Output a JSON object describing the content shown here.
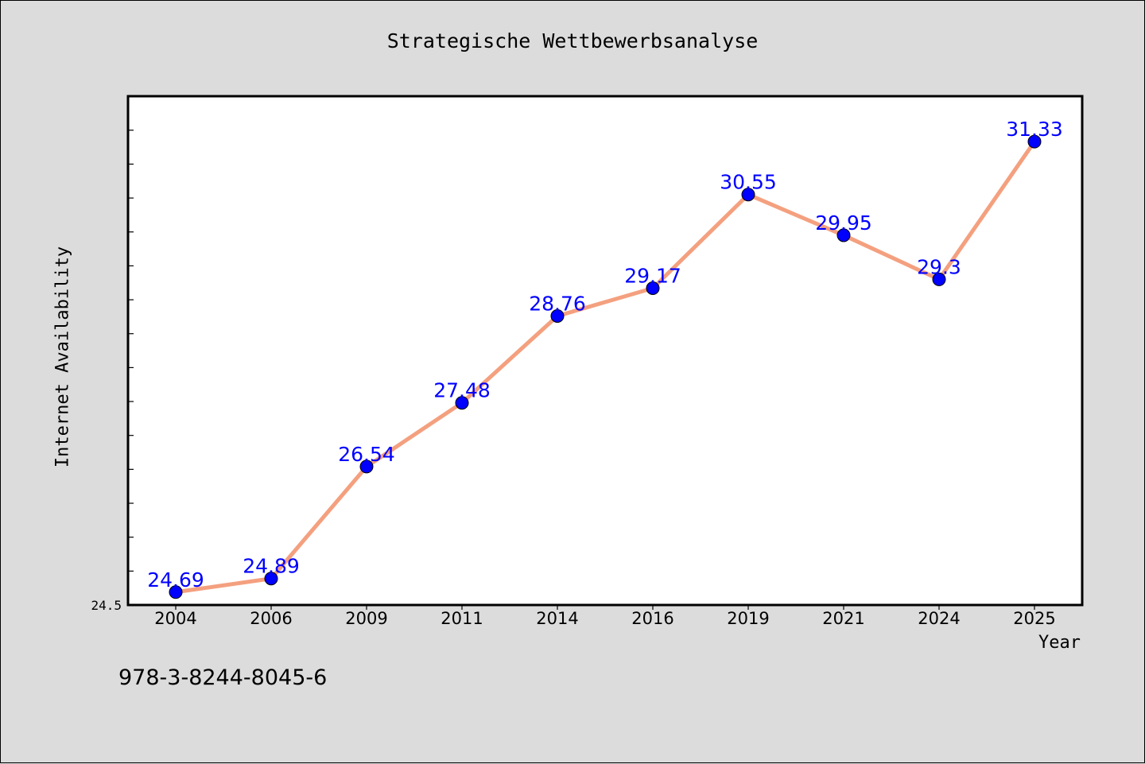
{
  "title": "Strategische Wettbewerbsanalyse",
  "footer_text": "978-3-8244-8045-6",
  "chart_data": {
    "type": "line",
    "title": "Strategische Wettbewerbsanalyse",
    "xlabel": "Year",
    "ylabel": "Internet Availability",
    "categories": [
      "2004",
      "2006",
      "2009",
      "2011",
      "2014",
      "2016",
      "2019",
      "2021",
      "2024",
      "2025"
    ],
    "series": [
      {
        "values": [
          24.69,
          24.89,
          26.54,
          27.48,
          28.76,
          29.17,
          30.55,
          29.95,
          29.3,
          31.33
        ],
        "labels": [
          "24.69",
          "24.89",
          "26.54",
          "27.48",
          "28.76",
          "29.17",
          "30.55",
          "29.95",
          "29.3",
          "31.33"
        ],
        "line_color": "#f4a07f",
        "marker_color": "#0000ff"
      }
    ],
    "ylim": [
      24.5,
      32.0
    ],
    "y_min_label": "24.5",
    "grid": false,
    "legend": "none"
  }
}
